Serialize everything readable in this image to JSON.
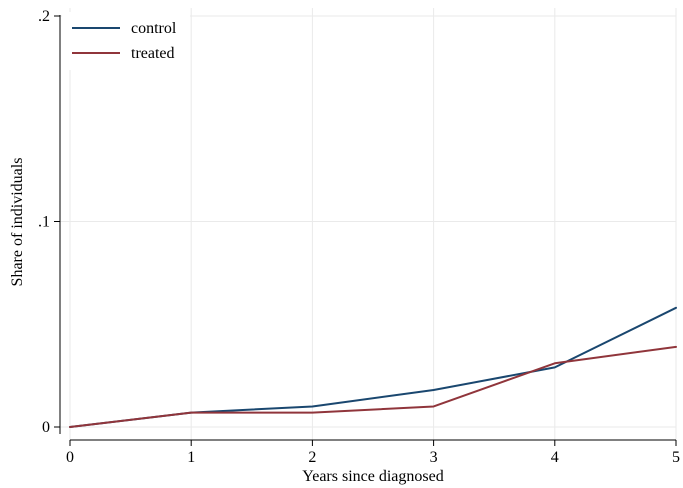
{
  "chart_data": {
    "type": "line",
    "title": "",
    "xlabel": "Years since diagnosed",
    "ylabel": "Share of individuals",
    "x": [
      0,
      1,
      2,
      3,
      4,
      5
    ],
    "xlim": [
      0,
      5
    ],
    "ylim": [
      0,
      0.2
    ],
    "x_ticks": [
      0,
      1,
      2,
      3,
      4,
      5
    ],
    "x_tick_labels": [
      "0",
      "1",
      "2",
      "3",
      "4",
      "5"
    ],
    "y_ticks": [
      0,
      0.1,
      0.2
    ],
    "y_tick_labels": [
      "0",
      ".1",
      ".2"
    ],
    "grid": true,
    "legend_position": "top-left",
    "series": [
      {
        "name": "control",
        "color": "#1a476f",
        "values": [
          0.0,
          0.007,
          0.01,
          0.018,
          0.029,
          0.058
        ]
      },
      {
        "name": "treated",
        "color": "#90353b",
        "values": [
          0.0,
          0.007,
          0.007,
          0.01,
          0.031,
          0.039
        ]
      }
    ]
  }
}
